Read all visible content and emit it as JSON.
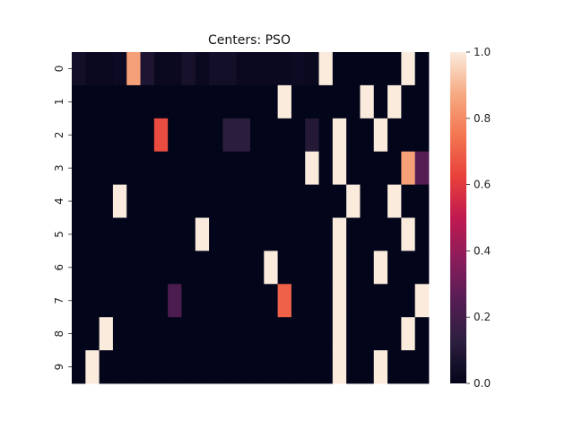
{
  "chart_data": {
    "type": "heatmap",
    "title": "Centers: PSO",
    "xlabel": "",
    "ylabel": "",
    "row_labels": [
      "0",
      "1",
      "2",
      "3",
      "4",
      "5",
      "6",
      "7",
      "8",
      "9"
    ],
    "n_cols": 26,
    "x_tick_labels": [],
    "colorbar": {
      "min": 0.0,
      "max": 1.0,
      "tick_labels": [
        "0.0",
        "0.2",
        "0.4",
        "0.6",
        "0.8",
        "1.0"
      ],
      "tick_values": [
        0.0,
        0.2,
        0.4,
        0.6,
        0.8,
        1.0
      ]
    },
    "colormap": "rocket",
    "values": [
      [
        0.05,
        0.02,
        0.02,
        0.03,
        0.85,
        0.08,
        0.02,
        0.02,
        0.06,
        0.02,
        0.05,
        0.05,
        0.02,
        0.02,
        0.02,
        0.02,
        0.03,
        0.02,
        1.0,
        0.0,
        0.0,
        0.0,
        0.0,
        0.0,
        1.0,
        0.0
      ],
      [
        0.0,
        0.0,
        0.0,
        0.0,
        0.0,
        0.0,
        0.0,
        0.0,
        0.0,
        0.0,
        0.0,
        0.0,
        0.0,
        0.0,
        0.0,
        1.0,
        0.0,
        0.0,
        0.0,
        0.0,
        0.0,
        1.0,
        0.0,
        1.0,
        0.0,
        0.0
      ],
      [
        0.0,
        0.0,
        0.0,
        0.0,
        0.0,
        0.0,
        0.65,
        0.0,
        0.0,
        0.0,
        0.0,
        0.12,
        0.12,
        0.0,
        0.0,
        0.0,
        0.0,
        0.1,
        0.0,
        1.0,
        0.0,
        0.0,
        1.0,
        0.0,
        0.0,
        0.0
      ],
      [
        0.0,
        0.0,
        0.0,
        0.0,
        0.0,
        0.0,
        0.0,
        0.0,
        0.0,
        0.0,
        0.0,
        0.0,
        0.0,
        0.0,
        0.0,
        0.0,
        0.0,
        1.0,
        0.0,
        1.0,
        0.0,
        0.0,
        0.0,
        0.0,
        0.85,
        0.25
      ],
      [
        0.0,
        0.0,
        0.0,
        1.0,
        0.0,
        0.0,
        0.0,
        0.0,
        0.0,
        0.0,
        0.0,
        0.0,
        0.0,
        0.0,
        0.0,
        0.0,
        0.0,
        0.0,
        0.0,
        0.0,
        1.0,
        0.0,
        0.0,
        1.0,
        0.0,
        0.0
      ],
      [
        0.0,
        0.0,
        0.0,
        0.0,
        0.0,
        0.0,
        0.0,
        0.0,
        0.0,
        1.0,
        0.0,
        0.0,
        0.0,
        0.0,
        0.0,
        0.0,
        0.0,
        0.0,
        0.0,
        1.0,
        0.0,
        0.0,
        0.0,
        0.0,
        1.0,
        0.0
      ],
      [
        0.0,
        0.0,
        0.0,
        0.0,
        0.0,
        0.0,
        0.0,
        0.0,
        0.0,
        0.0,
        0.0,
        0.0,
        0.0,
        0.0,
        1.0,
        0.0,
        0.0,
        0.0,
        0.0,
        1.0,
        0.0,
        0.0,
        1.0,
        0.0,
        0.0,
        0.0
      ],
      [
        0.0,
        0.0,
        0.0,
        0.0,
        0.0,
        0.0,
        0.0,
        0.22,
        0.0,
        0.0,
        0.0,
        0.0,
        0.0,
        0.0,
        0.0,
        0.7,
        0.0,
        0.0,
        0.0,
        1.0,
        0.0,
        0.0,
        0.0,
        0.0,
        0.0,
        1.0
      ],
      [
        0.0,
        0.0,
        1.0,
        0.0,
        0.0,
        0.0,
        0.0,
        0.0,
        0.0,
        0.0,
        0.0,
        0.0,
        0.0,
        0.0,
        0.0,
        0.0,
        0.0,
        0.0,
        0.0,
        1.0,
        0.0,
        0.0,
        0.0,
        0.0,
        1.0,
        0.0
      ],
      [
        0.0,
        1.0,
        0.0,
        0.0,
        0.0,
        0.0,
        0.0,
        0.0,
        0.0,
        0.0,
        0.0,
        0.0,
        0.0,
        0.0,
        0.0,
        0.0,
        0.0,
        0.0,
        0.0,
        1.0,
        0.0,
        0.0,
        1.0,
        0.0,
        0.0,
        0.0
      ]
    ]
  }
}
